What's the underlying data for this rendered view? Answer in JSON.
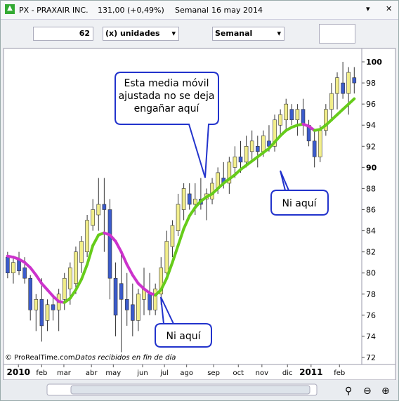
{
  "window": {
    "title": "PX - PRAXAIR INC.",
    "quote": "131,00 (+0,49%)",
    "period": "Semanal",
    "date": "16 may 2014"
  },
  "toolbar": {
    "units_count": "62",
    "units": "(x) unidades",
    "period": "Semanal"
  },
  "annotations": [
    "Esta media móvil\najustada no se deja\nengañar aquí",
    "Ni aquí",
    "Ni aquí"
  ],
  "footer": {
    "copyright": "© ProRealTime.com",
    "note": "Datos recibidos en fin de día"
  },
  "chart_data": {
    "type": "candlestick",
    "open": [
      81.5,
      80.0,
      81.2,
      80.5,
      79.5,
      76.5,
      77.5,
      75.5,
      77.0,
      76.5,
      77.5,
      78.5,
      79.0,
      81.0,
      82.0,
      84.5,
      85.5,
      86.5,
      86.0,
      79.5,
      79.0,
      77.5,
      77.0,
      75.5,
      77.5,
      78.0,
      76.5,
      78.0,
      80.0,
      82.5,
      84.0,
      86.0,
      87.5,
      86.5,
      87.0,
      87.0,
      87.0,
      88.0,
      89.0,
      88.5,
      90.0,
      91.0,
      90.5,
      91.5,
      92.0,
      91.5,
      92.5,
      92.0,
      94.0,
      94.5,
      95.5,
      94.5,
      95.5,
      94.0,
      92.5,
      91.0,
      93.5,
      95.5,
      97.0,
      98.0,
      97.0,
      98.5
    ],
    "high": [
      82.0,
      81.5,
      82.0,
      81.5,
      79.8,
      78.0,
      79.5,
      77.5,
      78.0,
      78.5,
      80.0,
      81.0,
      82.5,
      83.5,
      85.5,
      87.0,
      89.0,
      89.0,
      87.0,
      81.0,
      82.0,
      80.0,
      79.0,
      78.5,
      80.5,
      80.0,
      79.0,
      81.5,
      84.0,
      85.0,
      87.5,
      88.5,
      88.5,
      88.5,
      89.0,
      88.0,
      89.0,
      90.0,
      90.5,
      91.0,
      92.0,
      92.5,
      93.0,
      93.5,
      93.0,
      93.5,
      94.0,
      95.0,
      95.5,
      96.5,
      96.0,
      96.0,
      96.5,
      94.5,
      93.5,
      94.0,
      96.0,
      98.0,
      99.0,
      100.0,
      99.5,
      99.5
    ],
    "low": [
      79.5,
      79.0,
      79.8,
      79.0,
      75.5,
      74.5,
      73.5,
      74.5,
      75.5,
      74.5,
      76.5,
      77.0,
      78.0,
      80.0,
      81.5,
      84.0,
      84.0,
      82.0,
      77.5,
      74.0,
      72.5,
      75.0,
      74.0,
      74.5,
      76.0,
      76.0,
      76.0,
      77.0,
      79.5,
      81.5,
      83.5,
      85.0,
      86.0,
      85.5,
      86.0,
      85.0,
      86.5,
      87.5,
      88.0,
      87.5,
      89.0,
      89.5,
      90.0,
      90.5,
      90.0,
      91.0,
      91.5,
      91.5,
      93.0,
      93.5,
      94.0,
      93.0,
      93.0,
      92.0,
      90.0,
      90.5,
      93.0,
      94.5,
      95.5,
      96.5,
      95.0,
      97.0
    ],
    "close": [
      80.0,
      81.0,
      80.2,
      79.5,
      76.5,
      77.5,
      75.0,
      77.0,
      76.5,
      78.0,
      79.5,
      80.5,
      82.0,
      83.0,
      85.0,
      86.0,
      86.5,
      86.0,
      79.5,
      76.0,
      77.5,
      76.5,
      75.5,
      78.0,
      78.5,
      76.5,
      78.5,
      80.5,
      83.0,
      84.5,
      86.5,
      88.0,
      86.5,
      87.0,
      86.5,
      87.5,
      88.5,
      89.5,
      88.5,
      90.5,
      91.0,
      90.5,
      92.0,
      92.5,
      91.5,
      93.0,
      92.0,
      94.5,
      95.0,
      96.0,
      94.5,
      95.5,
      94.0,
      92.5,
      91.0,
      93.5,
      95.5,
      97.0,
      98.5,
      97.0,
      99.0,
      98.0
    ],
    "up_color": "#f2ee8a",
    "down_color": "#3b5bcc",
    "average": [
      81.6,
      81.5,
      81.3,
      81.0,
      80.5,
      79.8,
      79.0,
      78.4,
      77.8,
      77.3,
      77.2,
      77.6,
      78.4,
      79.4,
      80.8,
      82.6,
      83.6,
      83.8,
      83.6,
      83.0,
      82.0,
      80.8,
      79.8,
      79.0,
      78.5,
      78.1,
      77.9,
      78.4,
      79.5,
      81.0,
      82.6,
      84.2,
      85.4,
      86.2,
      86.8,
      87.2,
      87.5,
      88.0,
      88.5,
      88.9,
      89.3,
      89.8,
      90.2,
      90.6,
      91.0,
      91.4,
      91.8,
      92.4,
      93.0,
      93.5,
      93.8,
      94.0,
      94.1,
      93.9,
      93.5,
      93.6,
      94.0,
      94.5,
      95.0,
      95.5,
      96.0,
      96.5
    ],
    "average_rising_color": "#66cc1a",
    "average_falling_color": "#cc33cc",
    "ylim": [
      71.4,
      101.2
    ],
    "yticks": [
      72,
      74,
      76,
      78,
      80,
      82,
      84,
      86,
      88,
      90,
      92,
      94,
      96,
      98,
      100
    ],
    "xlim": [
      -0.6,
      62.2
    ],
    "xticks": [
      {
        "value": 1.9,
        "label": "2010"
      },
      {
        "value": 6,
        "label": "feb"
      },
      {
        "value": 9.9,
        "label": "mar"
      },
      {
        "value": 14.75,
        "label": "abr"
      },
      {
        "value": 18.6,
        "label": "may"
      },
      {
        "value": 23.75,
        "label": "jun"
      },
      {
        "value": 27.6,
        "label": "jul"
      },
      {
        "value": 31.5,
        "label": "ago"
      },
      {
        "value": 36.25,
        "label": "sep"
      },
      {
        "value": 40.6,
        "label": "oct"
      },
      {
        "value": 44.75,
        "label": "nov"
      },
      {
        "value": 49.25,
        "label": "dic"
      },
      {
        "value": 53.4,
        "label": "2011"
      },
      {
        "value": 58.4,
        "label": "feb"
      }
    ]
  }
}
